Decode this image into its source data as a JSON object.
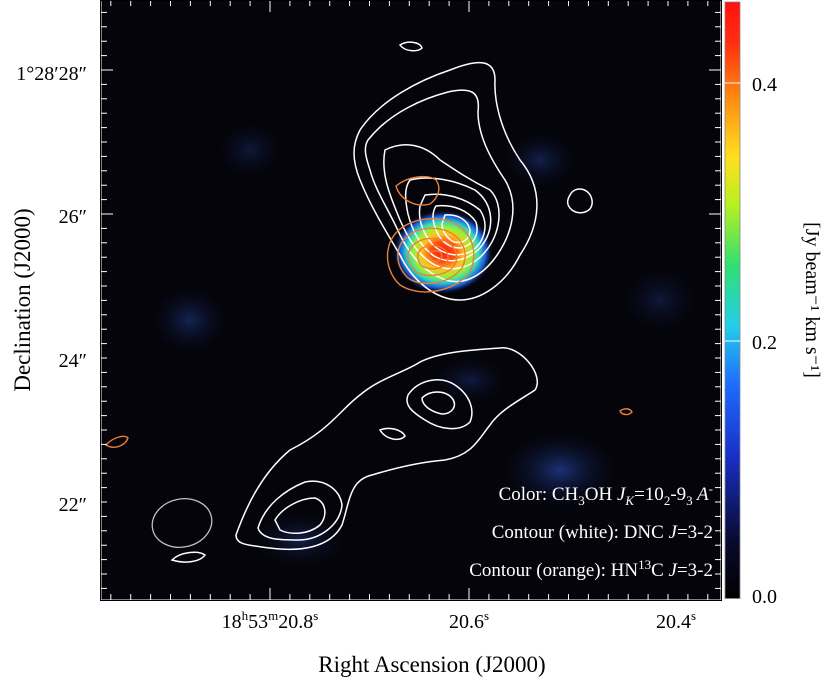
{
  "chart_data": {
    "type": "heatmap",
    "title": "",
    "xlabel": "Right Ascension (J2000)",
    "ylabel": "Declination (J2000)",
    "colorbar_label": "[Jy beam⁻¹ km s⁻¹]",
    "colorbar_ticks": [
      "0.4",
      "0.2",
      "0.0"
    ],
    "colorbar_range": [
      0.0,
      0.47
    ],
    "x_ticks": [
      {
        "h": "18",
        "m": "53",
        "s": "20.8",
        "style": "full"
      },
      {
        "s": "20.6",
        "style": "seconds"
      },
      {
        "s": "20.4",
        "style": "seconds"
      }
    ],
    "y_ticks": [
      {
        "deg": "1",
        "arcmin": "28",
        "arcsec": "28",
        "style": "full"
      },
      {
        "arcsec": "26",
        "style": "arcsec"
      },
      {
        "arcsec": "24",
        "style": "arcsec"
      },
      {
        "arcsec": "22",
        "style": "arcsec"
      }
    ],
    "legend": {
      "placement": "bottom-right",
      "color_entry": {
        "prefix": "Color: CH",
        "sub1": "3",
        "mid": "OH ",
        "j": "J",
        "k": "K",
        "eq": "=10",
        "sub2": "2",
        "dash": "-9",
        "sub3": "3",
        "a": " A",
        "sup": "-"
      },
      "white_entry": {
        "prefix": "Contour (white): DNC ",
        "j": "J",
        "rest": "=3-2"
      },
      "orange_entry": {
        "prefix": "Contour (orange): HN",
        "sup": "13",
        "c": "C ",
        "j": "J",
        "rest": "=3-2"
      }
    },
    "image_peak": {
      "ra_s": 20.63,
      "dec_arcsec": 25.5,
      "value": 0.46
    },
    "colors": {
      "white_contours": "#ffffff",
      "orange_contours": "#e8803a",
      "background": "#000000"
    }
  }
}
